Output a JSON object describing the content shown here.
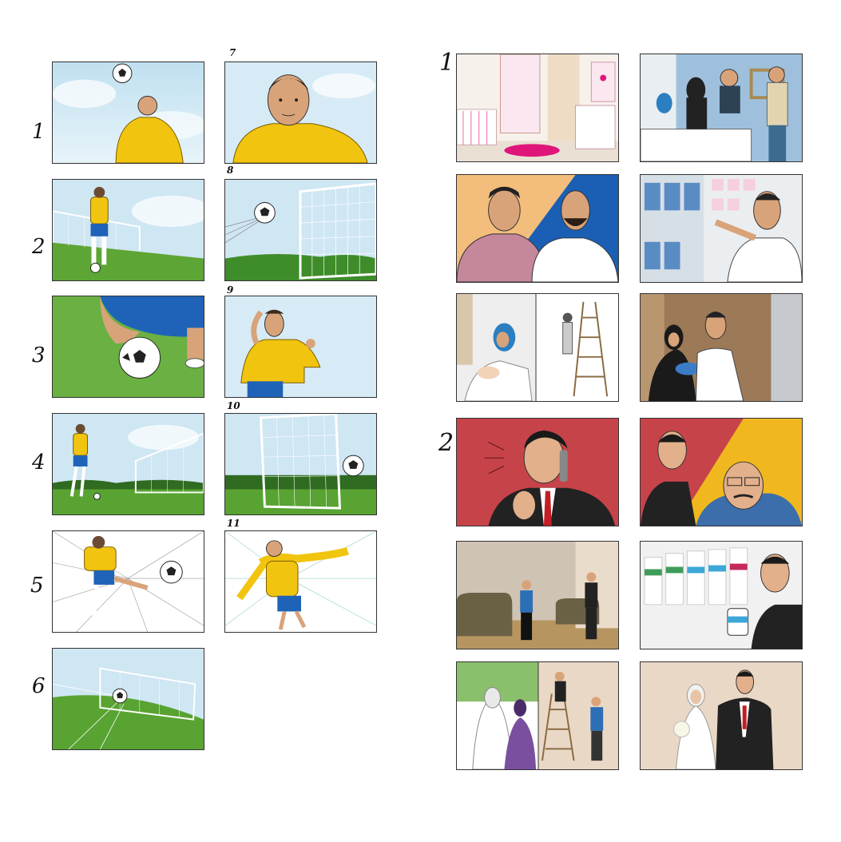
{
  "left_storyboard": {
    "row_numbers": [
      "1",
      "2",
      "3",
      "4",
      "5",
      "6"
    ],
    "panel_numbers": [
      "7",
      "8",
      "9",
      "10",
      "11"
    ]
  },
  "right_storyboard": {
    "section_numbers": [
      "1",
      "2"
    ]
  }
}
